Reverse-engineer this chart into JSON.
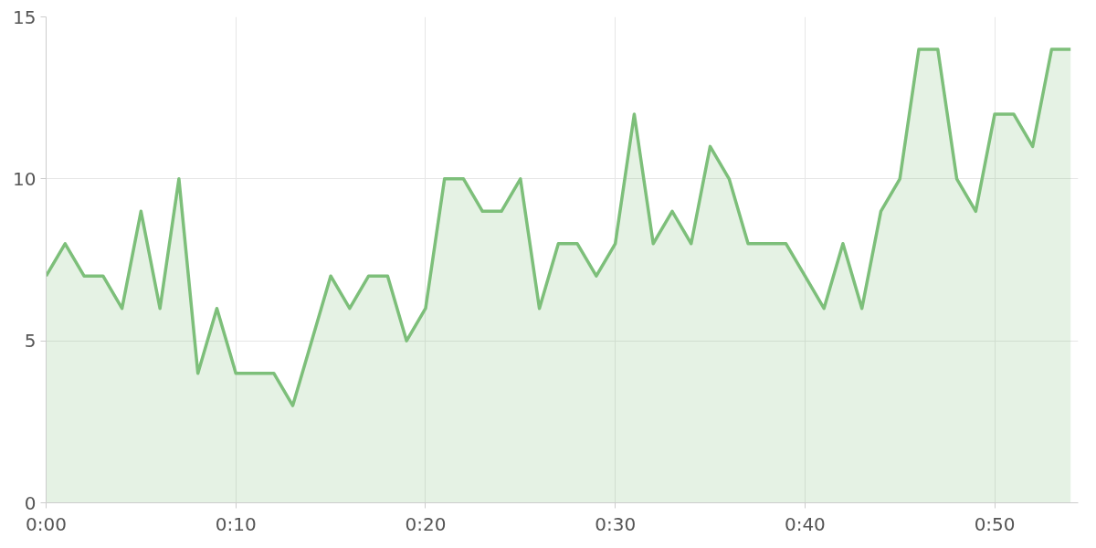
{
  "chart_data": {
    "type": "area",
    "x": [
      0,
      1,
      2,
      3,
      4,
      5,
      6,
      7,
      8,
      9,
      10,
      11,
      12,
      13,
      14,
      15,
      16,
      17,
      18,
      19,
      20,
      21,
      22,
      23,
      24,
      25,
      26,
      27,
      28,
      29,
      30,
      31,
      32,
      33,
      34,
      35,
      36,
      37,
      38,
      39,
      40,
      41,
      42,
      43,
      44,
      45,
      46,
      47,
      48,
      49,
      50,
      51,
      52,
      53,
      54
    ],
    "series": [
      {
        "color": "#7dbf7a",
        "values": [
          7,
          8,
          7,
          7,
          6,
          9,
          6,
          10,
          4,
          6,
          4,
          4,
          4,
          3,
          5,
          7,
          6,
          7,
          7,
          5,
          6,
          10,
          10,
          9,
          9,
          10,
          6,
          8,
          8,
          7,
          8,
          12,
          8,
          9,
          8,
          11,
          10,
          8,
          8,
          8,
          7,
          6,
          8,
          6,
          9,
          10,
          14,
          14,
          10,
          9,
          12,
          12,
          11,
          14,
          14
        ]
      }
    ],
    "xlim": [
      0,
      54.4
    ],
    "ylim": [
      0,
      15
    ],
    "xticks": [
      {
        "value": 0,
        "label": "0:00"
      },
      {
        "value": 10,
        "label": "0:10"
      },
      {
        "value": 20,
        "label": "0:20"
      },
      {
        "value": 30,
        "label": "0:30"
      },
      {
        "value": 40,
        "label": "0:40"
      },
      {
        "value": 50,
        "label": "0:50"
      }
    ],
    "yticks": [
      0,
      5,
      10,
      15
    ],
    "grid": true
  }
}
